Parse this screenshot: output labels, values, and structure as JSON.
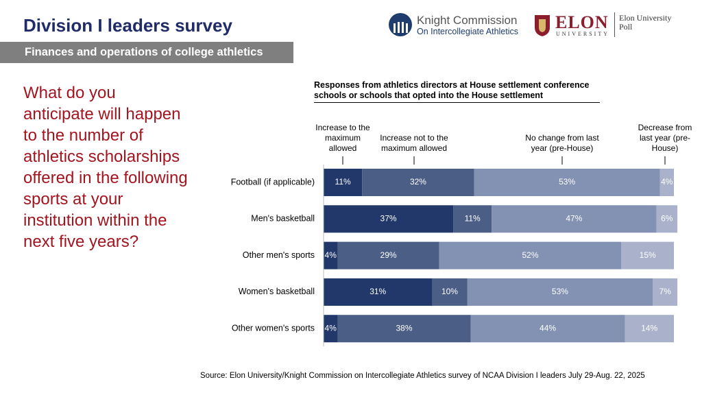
{
  "header": {
    "title": "Division I leaders survey",
    "subtitle": "Finances and operations of college athletics"
  },
  "question": "What do you anticipate will happen to the number of athletics scholarships offered in the following sports at your institution within the next five years?",
  "logos": {
    "knight_line1": "Knight Commission",
    "knight_line2": "On Intercollegiate Athletics",
    "elon": "ELON",
    "elon_sub": "UNIVERSITY",
    "poll_line1": "Elon University",
    "poll_line2": "Poll"
  },
  "source": "Source: Elon University/Knight Commission on Intercollegiate Athletics survey of NCAA Division I leaders July 29-Aug. 22, 2025",
  "chart_data": {
    "type": "stacked-bar-horizontal",
    "title": "Responses from athletics directors at House settlement conference schools or schools that opted into the House settlement",
    "categories": [
      "Football (if applicable)",
      "Men's basketball",
      "Other men's sports",
      "Women's basketball",
      "Other women's sports"
    ],
    "series": [
      {
        "name": "Increase to the maximum allowed",
        "color": "#22386a",
        "values": [
          11,
          37,
          4,
          31,
          4
        ],
        "value_labels": [
          "11%",
          "37%",
          "4%",
          "31%",
          "4%"
        ]
      },
      {
        "name": "Increase not to the maximum allowed",
        "color": "#4b5e86",
        "values": [
          32,
          11,
          29,
          10,
          38
        ],
        "value_labels": [
          "32%",
          "11%",
          "29%",
          "10%",
          "38%"
        ]
      },
      {
        "name": "No change from last year (pre-House)",
        "color": "#8391b2",
        "values": [
          53,
          47,
          52,
          53,
          44
        ],
        "value_labels": [
          "53%",
          "47%",
          "52%",
          "53%",
          "44%"
        ]
      },
      {
        "name": "Decrease from last year (pre-House)",
        "color": "#a9b2ca",
        "values": [
          4,
          6,
          15,
          7,
          14
        ],
        "value_labels": [
          "4%",
          "6%",
          "15%",
          "7%",
          "14%"
        ]
      }
    ]
  }
}
